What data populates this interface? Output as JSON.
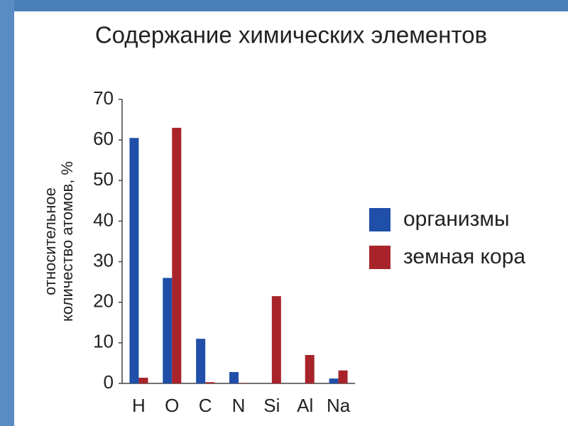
{
  "chart_data": {
    "type": "bar",
    "title": "Содержание химических элементов",
    "ylabel": [
      "относительное",
      "количество атомов, %"
    ],
    "categories": [
      "H",
      "O",
      "C",
      "N",
      "Si",
      "Al",
      "Na"
    ],
    "series": [
      {
        "name": "организмы",
        "color": "#1f4fa8",
        "values": [
          60.5,
          26,
          11,
          2.8,
          0,
          0,
          1.2
        ]
      },
      {
        "name": "земная кора",
        "color": "#a8242a",
        "values": [
          1.4,
          63,
          0.3,
          0.1,
          21.5,
          7,
          3.2
        ]
      }
    ],
    "ylim": [
      0,
      70
    ],
    "yticks": [
      0,
      10,
      20,
      30,
      40,
      50,
      60,
      70
    ],
    "grid": false
  }
}
